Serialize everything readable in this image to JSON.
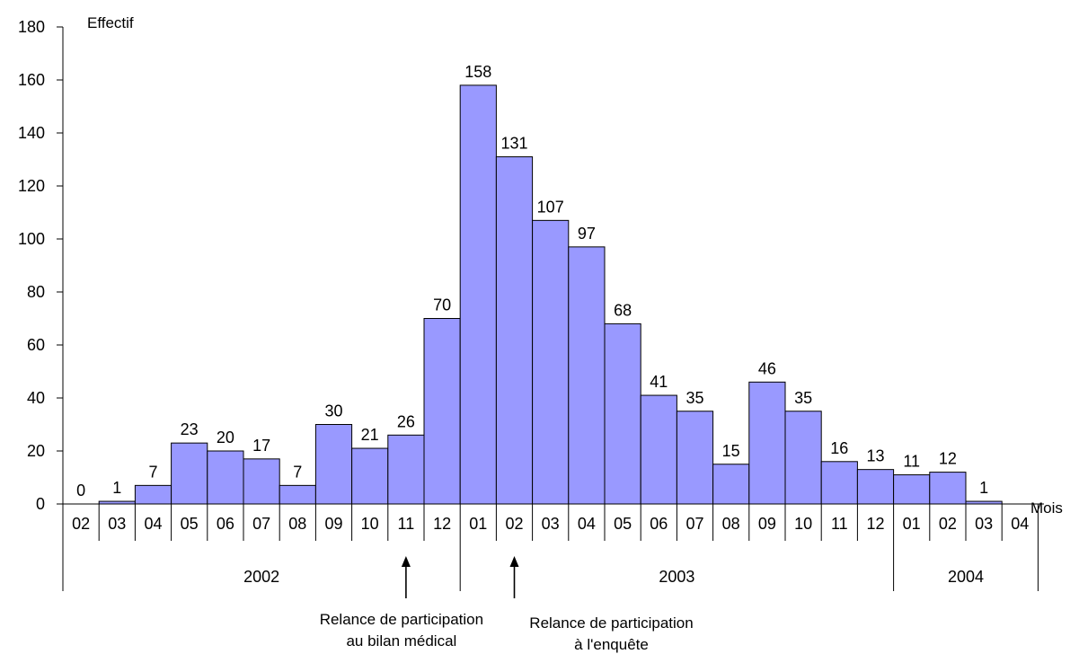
{
  "chart_data": {
    "type": "bar",
    "ylabel": "Effectif",
    "xlabel": "Mois",
    "ylim": [
      0,
      180
    ],
    "yticks": [
      0,
      20,
      40,
      60,
      80,
      100,
      120,
      140,
      160,
      180
    ],
    "categories": [
      "02",
      "03",
      "04",
      "05",
      "06",
      "07",
      "08",
      "09",
      "10",
      "11",
      "12",
      "01",
      "02",
      "03",
      "04",
      "05",
      "06",
      "07",
      "08",
      "09",
      "10",
      "11",
      "12",
      "01",
      "02",
      "03",
      "04"
    ],
    "values": [
      0,
      1,
      7,
      23,
      20,
      17,
      7,
      30,
      21,
      26,
      70,
      158,
      131,
      107,
      97,
      68,
      41,
      35,
      15,
      46,
      35,
      16,
      13,
      11,
      12,
      1,
      null
    ],
    "value_labels": [
      "0",
      "1",
      "7",
      "23",
      "20",
      "17",
      "7",
      "30",
      "21",
      "26",
      "70",
      "158",
      "131",
      "107",
      "97",
      "68",
      "41",
      "35",
      "15",
      "46",
      "35",
      "16",
      "13",
      "11",
      "12",
      "1",
      ""
    ],
    "years": [
      {
        "label": "2002",
        "start": 0,
        "end": 11
      },
      {
        "label": "2003",
        "start": 11,
        "end": 23
      },
      {
        "label": "2004",
        "start": 23,
        "end": 27
      }
    ],
    "annotations": [
      {
        "index": 9,
        "lines": [
          "Relance de participation",
          "au bilan médical"
        ]
      },
      {
        "index": 12,
        "lines": [
          "Relance de participation",
          "à l'enquête"
        ]
      }
    ],
    "bar_color": "#9999ff",
    "grid": false
  }
}
